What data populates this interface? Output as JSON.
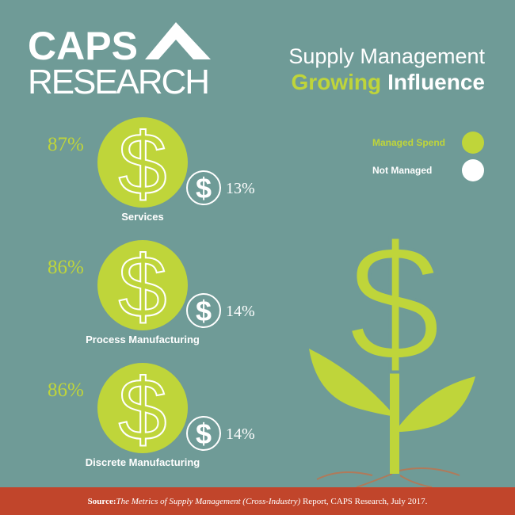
{
  "logo": {
    "line1": "CAPS",
    "line2": "RESEARCH"
  },
  "title": {
    "line1": "Supply Management",
    "line2a": "Growing",
    "line2b": "Influence"
  },
  "legend": [
    {
      "label": "Managed Spend",
      "color": "#bfd53a"
    },
    {
      "label": "Not Managed",
      "color": "#ffffff"
    }
  ],
  "rows": [
    {
      "label": "Services",
      "managed": "87%",
      "not_managed": "13%"
    },
    {
      "label": "Process Manufacturing",
      "managed": "86%",
      "not_managed": "14%"
    },
    {
      "label": "Discrete Manufacturing",
      "managed": "86%",
      "not_managed": "14%"
    }
  ],
  "footer": {
    "prefix": "Source:",
    "italic": "The Metrics of Supply Management (Cross-Industry)",
    "suffix": " Report, CAPS Research, July 2017."
  }
}
